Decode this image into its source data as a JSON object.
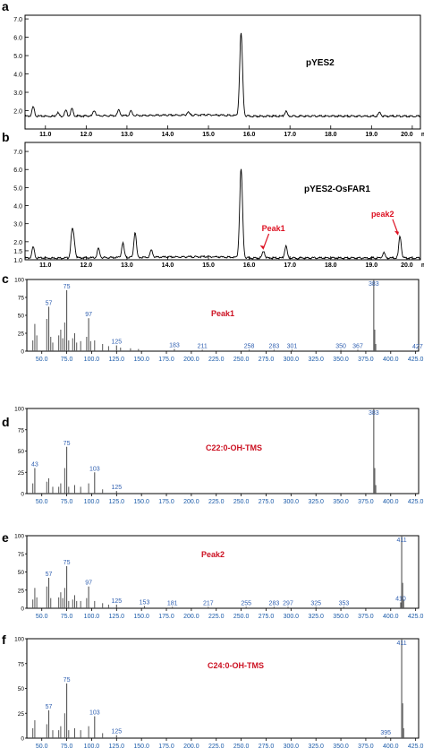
{
  "panels": [
    {
      "letter": "a",
      "chart_data": {
        "type": "line",
        "title": "pYES2",
        "x_axis_unit": "min",
        "xlim": [
          10.5,
          20.2
        ],
        "ylim": [
          1.0,
          7.2
        ],
        "x_ticks": [
          "11.0",
          "12.0",
          "13.0",
          "14.0",
          "15.0",
          "16.0",
          "17.0",
          "18.0",
          "19.0",
          "20.0"
        ],
        "y_ticks": [
          "2.0",
          "3.0",
          "4.0",
          "5.0",
          "6.0",
          "7.0"
        ],
        "peaks": [
          {
            "x": 10.7,
            "y": 2.2
          },
          {
            "x": 11.3,
            "y": 1.9
          },
          {
            "x": 11.5,
            "y": 2.0
          },
          {
            "x": 11.65,
            "y": 2.1
          },
          {
            "x": 12.2,
            "y": 2.0
          },
          {
            "x": 12.8,
            "y": 2.0
          },
          {
            "x": 13.1,
            "y": 1.95
          },
          {
            "x": 14.5,
            "y": 1.85
          },
          {
            "x": 15.8,
            "y": 6.2
          },
          {
            "x": 16.9,
            "y": 1.95
          },
          {
            "x": 19.2,
            "y": 1.9
          }
        ],
        "baseline": 1.7
      }
    },
    {
      "letter": "b",
      "chart_data": {
        "type": "line",
        "title": "pYES2-OsFAR1",
        "x_axis_unit": "min",
        "xlim": [
          10.5,
          20.2
        ],
        "ylim": [
          1.0,
          7.5
        ],
        "x_ticks": [
          "11.0",
          "12.0",
          "13.0",
          "14.0",
          "15.0",
          "16.0",
          "17.0",
          "18.0",
          "19.0",
          "20.0"
        ],
        "y_ticks": [
          "1.0",
          "1.5",
          "2.0",
          "3.0",
          "4.0",
          "5.0",
          "6.0",
          "7.0"
        ],
        "peaks": [
          {
            "x": 10.7,
            "y": 1.7
          },
          {
            "x": 11.65,
            "y": 2.4
          },
          {
            "x": 11.7,
            "y": 2.0
          },
          {
            "x": 12.3,
            "y": 1.6
          },
          {
            "x": 12.9,
            "y": 1.9
          },
          {
            "x": 13.2,
            "y": 2.5
          },
          {
            "x": 13.6,
            "y": 1.5
          },
          {
            "x": 15.8,
            "y": 6.0
          },
          {
            "x": 16.35,
            "y": 1.5
          },
          {
            "x": 16.9,
            "y": 1.75
          },
          {
            "x": 19.3,
            "y": 1.4
          },
          {
            "x": 19.7,
            "y": 2.3
          }
        ],
        "baseline": 1.1,
        "annotations": [
          {
            "label": "Peak1",
            "x": 16.35,
            "y": 1.5
          },
          {
            "label": "peak2",
            "x": 19.65,
            "y": 2.3
          }
        ]
      }
    },
    {
      "letter": "c",
      "chart_data": {
        "type": "bar",
        "title": "Peak1",
        "xlim": [
          35,
          428
        ],
        "ylim": [
          0,
          100
        ],
        "x_ticks": [
          "50.0",
          "75.0",
          "100.0",
          "125.0",
          "150.0",
          "175.0",
          "200.0",
          "225.0",
          "250.0",
          "275.0",
          "300.0",
          "325.0",
          "350.0",
          "375.0",
          "400.0",
          "425.0"
        ],
        "y_ticks": [
          "0",
          "25",
          "50",
          "75",
          "100"
        ],
        "labeled_peaks": [
          {
            "mz": 57,
            "intensity": 62
          },
          {
            "mz": 75,
            "intensity": 85
          },
          {
            "mz": 97,
            "intensity": 46
          },
          {
            "mz": 125,
            "intensity": 8
          },
          {
            "mz": 183,
            "intensity": 3
          },
          {
            "mz": 211,
            "intensity": 2
          },
          {
            "mz": 258,
            "intensity": 2
          },
          {
            "mz": 283,
            "intensity": 2
          },
          {
            "mz": 301,
            "intensity": 2
          },
          {
            "mz": 350,
            "intensity": 2
          },
          {
            "mz": 367,
            "intensity": 2
          },
          {
            "mz": 383,
            "intensity": 100
          },
          {
            "mz": 427,
            "intensity": 1
          }
        ],
        "minor_peaks": [
          {
            "mz": 41,
            "intensity": 15
          },
          {
            "mz": 43,
            "intensity": 38
          },
          {
            "mz": 45,
            "intensity": 22
          },
          {
            "mz": 55,
            "intensity": 45
          },
          {
            "mz": 59,
            "intensity": 20
          },
          {
            "mz": 61,
            "intensity": 12
          },
          {
            "mz": 67,
            "intensity": 22
          },
          {
            "mz": 69,
            "intensity": 30
          },
          {
            "mz": 71,
            "intensity": 18
          },
          {
            "mz": 73,
            "intensity": 40
          },
          {
            "mz": 77,
            "intensity": 15
          },
          {
            "mz": 81,
            "intensity": 18
          },
          {
            "mz": 83,
            "intensity": 25
          },
          {
            "mz": 85,
            "intensity": 12
          },
          {
            "mz": 89,
            "intensity": 14
          },
          {
            "mz": 95,
            "intensity": 20
          },
          {
            "mz": 99,
            "intensity": 14
          },
          {
            "mz": 103,
            "intensity": 15
          },
          {
            "mz": 111,
            "intensity": 10
          },
          {
            "mz": 117,
            "intensity": 7
          },
          {
            "mz": 129,
            "intensity": 5
          },
          {
            "mz": 139,
            "intensity": 4
          },
          {
            "mz": 147,
            "intensity": 3
          },
          {
            "mz": 384,
            "intensity": 30
          },
          {
            "mz": 385,
            "intensity": 10
          }
        ]
      }
    },
    {
      "letter": "d",
      "chart_data": {
        "type": "bar",
        "title": "C22:0-OH-TMS",
        "xlim": [
          35,
          428
        ],
        "ylim": [
          0,
          100
        ],
        "x_ticks": [
          "50.0",
          "75.0",
          "100.0",
          "125.0",
          "150.0",
          "175.0",
          "200.0",
          "225.0",
          "250.0",
          "275.0",
          "300.0",
          "325.0",
          "350.0",
          "375.0",
          "400.0",
          "425.0"
        ],
        "y_ticks": [
          "0",
          "25",
          "50",
          "75",
          "100"
        ],
        "labeled_peaks": [
          {
            "mz": 43,
            "intensity": 30
          },
          {
            "mz": 75,
            "intensity": 55
          },
          {
            "mz": 103,
            "intensity": 25
          },
          {
            "mz": 125,
            "intensity": 3
          },
          {
            "mz": 383,
            "intensity": 100
          }
        ],
        "minor_peaks": [
          {
            "mz": 41,
            "intensity": 12
          },
          {
            "mz": 55,
            "intensity": 14
          },
          {
            "mz": 57,
            "intensity": 18
          },
          {
            "mz": 61,
            "intensity": 8
          },
          {
            "mz": 67,
            "intensity": 8
          },
          {
            "mz": 69,
            "intensity": 12
          },
          {
            "mz": 73,
            "intensity": 30
          },
          {
            "mz": 77,
            "intensity": 8
          },
          {
            "mz": 83,
            "intensity": 10
          },
          {
            "mz": 89,
            "intensity": 8
          },
          {
            "mz": 97,
            "intensity": 12
          },
          {
            "mz": 111,
            "intensity": 5
          },
          {
            "mz": 384,
            "intensity": 30
          },
          {
            "mz": 385,
            "intensity": 10
          }
        ]
      }
    },
    {
      "letter": "e",
      "chart_data": {
        "type": "bar",
        "title": "Peak2",
        "xlim": [
          35,
          428
        ],
        "ylim": [
          0,
          100
        ],
        "x_ticks": [
          "50.0",
          "75.0",
          "100.0",
          "125.0",
          "150.0",
          "175.0",
          "200.0",
          "225.0",
          "250.0",
          "275.0",
          "300.0",
          "325.0",
          "350.0",
          "375.0",
          "400.0",
          "425.0"
        ],
        "y_ticks": [
          "0",
          "25",
          "50",
          "75",
          "100"
        ],
        "labeled_peaks": [
          {
            "mz": 57,
            "intensity": 42
          },
          {
            "mz": 75,
            "intensity": 58
          },
          {
            "mz": 97,
            "intensity": 30
          },
          {
            "mz": 125,
            "intensity": 5
          },
          {
            "mz": 153,
            "intensity": 3
          },
          {
            "mz": 181,
            "intensity": 2
          },
          {
            "mz": 217,
            "intensity": 2
          },
          {
            "mz": 255,
            "intensity": 2
          },
          {
            "mz": 283,
            "intensity": 2
          },
          {
            "mz": 297,
            "intensity": 2
          },
          {
            "mz": 325,
            "intensity": 2
          },
          {
            "mz": 353,
            "intensity": 2
          },
          {
            "mz": 410,
            "intensity": 8
          },
          {
            "mz": 411,
            "intensity": 100
          }
        ],
        "minor_peaks": [
          {
            "mz": 41,
            "intensity": 12
          },
          {
            "mz": 43,
            "intensity": 28
          },
          {
            "mz": 45,
            "intensity": 15
          },
          {
            "mz": 55,
            "intensity": 30
          },
          {
            "mz": 59,
            "intensity": 14
          },
          {
            "mz": 67,
            "intensity": 15
          },
          {
            "mz": 69,
            "intensity": 22
          },
          {
            "mz": 71,
            "intensity": 14
          },
          {
            "mz": 73,
            "intensity": 28
          },
          {
            "mz": 77,
            "intensity": 10
          },
          {
            "mz": 81,
            "intensity": 12
          },
          {
            "mz": 83,
            "intensity": 18
          },
          {
            "mz": 85,
            "intensity": 10
          },
          {
            "mz": 89,
            "intensity": 10
          },
          {
            "mz": 95,
            "intensity": 14
          },
          {
            "mz": 103,
            "intensity": 10
          },
          {
            "mz": 111,
            "intensity": 7
          },
          {
            "mz": 117,
            "intensity": 5
          },
          {
            "mz": 412,
            "intensity": 35
          },
          {
            "mz": 413,
            "intensity": 12
          }
        ]
      }
    },
    {
      "letter": "f",
      "chart_data": {
        "type": "bar",
        "title": "C24:0-OH-TMS",
        "xlim": [
          35,
          428
        ],
        "ylim": [
          0,
          100
        ],
        "x_ticks": [
          "50.0",
          "75.0",
          "100.0",
          "125.0",
          "150.0",
          "175.0",
          "200.0",
          "225.0",
          "250.0",
          "275.0",
          "300.0",
          "325.0",
          "350.0",
          "375.0",
          "400.0",
          "425.0"
        ],
        "y_ticks": [
          "0",
          "25",
          "50",
          "75",
          "100"
        ],
        "labeled_peaks": [
          {
            "mz": 57,
            "intensity": 28
          },
          {
            "mz": 75,
            "intensity": 55
          },
          {
            "mz": 103,
            "intensity": 22
          },
          {
            "mz": 125,
            "intensity": 3
          },
          {
            "mz": 395,
            "intensity": 2
          },
          {
            "mz": 411,
            "intensity": 100
          }
        ],
        "minor_peaks": [
          {
            "mz": 41,
            "intensity": 10
          },
          {
            "mz": 43,
            "intensity": 18
          },
          {
            "mz": 55,
            "intensity": 14
          },
          {
            "mz": 61,
            "intensity": 8
          },
          {
            "mz": 67,
            "intensity": 8
          },
          {
            "mz": 69,
            "intensity": 12
          },
          {
            "mz": 73,
            "intensity": 25
          },
          {
            "mz": 77,
            "intensity": 8
          },
          {
            "mz": 83,
            "intensity": 10
          },
          {
            "mz": 89,
            "intensity": 8
          },
          {
            "mz": 97,
            "intensity": 12
          },
          {
            "mz": 111,
            "intensity": 5
          },
          {
            "mz": 412,
            "intensity": 35
          },
          {
            "mz": 413,
            "intensity": 10
          }
        ]
      }
    }
  ],
  "colors": {
    "axis": "#000000",
    "trace": "#000000",
    "bar": "#555555",
    "tick_label": "#1a5aa8",
    "peak_label": "#2f5fb0",
    "title": "#cc1122",
    "annotation": "#dd1122"
  }
}
